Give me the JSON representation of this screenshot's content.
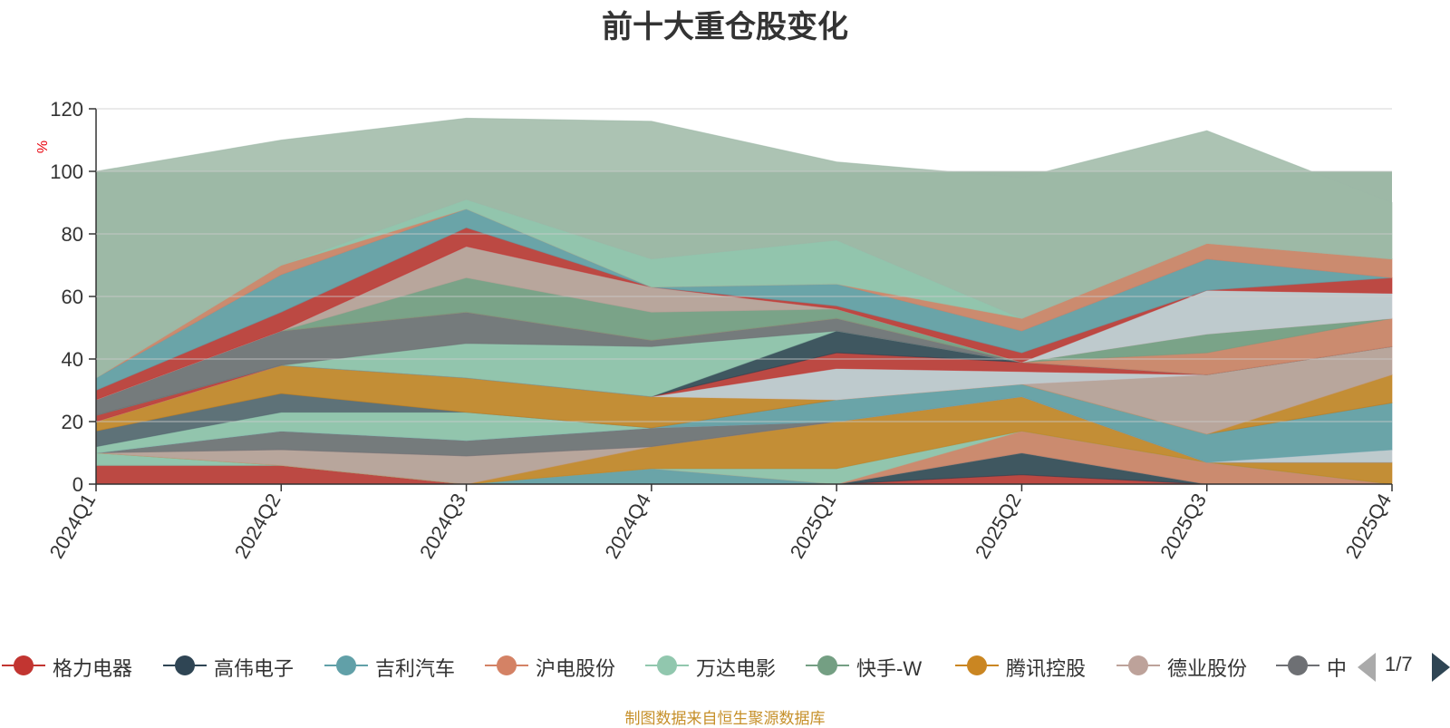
{
  "chart_data": {
    "type": "area",
    "title": "前十大重仓股变化",
    "ylabel": "%",
    "ylim": [
      0,
      120
    ],
    "yticks": [
      0,
      20,
      40,
      60,
      80,
      100,
      120
    ],
    "categories": [
      "2024Q1",
      "2024Q2",
      "2024Q3",
      "2024Q4",
      "2025Q1",
      "2025Q2",
      "2025Q3",
      "2025Q4"
    ],
    "grid": true,
    "background_band": {
      "from": 0,
      "to": 100,
      "color": "#9db8a6"
    },
    "series": [
      {
        "name": "格力电器",
        "color": "#c23531",
        "values": [
          6,
          6,
          0,
          0,
          0,
          3,
          0,
          0
        ]
      },
      {
        "name": "高伟电子",
        "color": "#2f4554",
        "values": [
          0,
          0,
          0,
          0,
          0,
          7,
          0,
          0
        ]
      },
      {
        "name": "吉利汽车",
        "color": "#61a0a8",
        "values": [
          0,
          0,
          0,
          5,
          0,
          0,
          0,
          0
        ]
      },
      {
        "name": "沪电股份",
        "color": "#d48265",
        "values": [
          0,
          0,
          0,
          0,
          0,
          7,
          7,
          0
        ]
      },
      {
        "name": "万达电影",
        "color": "#91c7ae",
        "values": [
          4,
          0,
          0,
          0,
          5,
          0,
          0,
          0
        ]
      },
      {
        "name": "快手-W",
        "color": "#749f83",
        "values": [
          0,
          0,
          0,
          0,
          0,
          0,
          0,
          0
        ]
      },
      {
        "name": "腾讯控股",
        "color": "#ca8622",
        "values": [
          0,
          0,
          0,
          7,
          15,
          11,
          0,
          7
        ]
      },
      {
        "name": "德业股份",
        "color": "#bda29a",
        "values": [
          0,
          5,
          9,
          0,
          0,
          0,
          0,
          0
        ]
      },
      {
        "name": "中",
        "color": "#6e7074",
        "values": [
          0,
          6,
          5,
          6,
          0,
          0,
          0,
          0
        ]
      },
      {
        "name": "",
        "color": "#546570",
        "values": [
          0,
          0,
          0,
          0,
          0,
          0,
          0,
          0
        ]
      },
      {
        "name": "",
        "color": "#c4ccd3",
        "values": [
          0,
          0,
          0,
          0,
          0,
          0,
          0,
          4
        ]
      },
      {
        "name": "",
        "color": "#61a0a8",
        "values": [
          0,
          0,
          0,
          0,
          7,
          4,
          9,
          15
        ]
      },
      {
        "name": "",
        "color": "#91c7ae",
        "values": [
          2,
          6,
          9,
          0,
          0,
          0,
          0,
          0
        ]
      },
      {
        "name": "",
        "color": "#546570",
        "values": [
          5,
          6,
          0,
          0,
          0,
          0,
          0,
          0
        ]
      },
      {
        "name": "",
        "color": "#ca8622",
        "values": [
          3,
          9,
          11,
          10,
          0,
          0,
          0,
          9
        ]
      },
      {
        "name": "",
        "color": "#bda29a",
        "values": [
          0,
          0,
          0,
          0,
          0,
          0,
          19,
          9
        ]
      },
      {
        "name": "",
        "color": "#c4ccd3",
        "values": [
          0,
          0,
          0,
          0,
          10,
          4,
          0,
          0
        ]
      },
      {
        "name": "",
        "color": "#c23531",
        "values": [
          2,
          0,
          0,
          0,
          5,
          3,
          0,
          0
        ]
      },
      {
        "name": "",
        "color": "#2f4554",
        "values": [
          0,
          0,
          0,
          0,
          7,
          0,
          0,
          0
        ]
      },
      {
        "name": "",
        "color": "#91c7ae",
        "values": [
          0,
          0,
          11,
          16,
          0,
          0,
          0,
          0
        ]
      },
      {
        "name": "",
        "color": "#6e7074",
        "values": [
          5,
          11,
          10,
          2,
          4,
          0,
          0,
          0
        ]
      },
      {
        "name": "",
        "color": "#d48265",
        "values": [
          0,
          0,
          0,
          0,
          0,
          0,
          7,
          9
        ]
      },
      {
        "name": "",
        "color": "#749f83",
        "values": [
          0,
          0,
          11,
          9,
          3,
          0,
          6,
          0
        ]
      },
      {
        "name": "",
        "color": "#bda29a",
        "values": [
          0,
          0,
          10,
          8,
          0,
          0,
          0,
          0
        ]
      },
      {
        "name": "",
        "color": "#c4ccd3",
        "values": [
          0,
          0,
          0,
          0,
          0,
          0,
          14,
          8
        ]
      },
      {
        "name": "",
        "color": "#c23531",
        "values": [
          3,
          6,
          6,
          0,
          1,
          3,
          0,
          5
        ]
      },
      {
        "name": "",
        "color": "#61a0a8",
        "values": [
          4,
          12,
          6,
          0,
          7,
          7,
          10,
          0
        ]
      },
      {
        "name": "",
        "color": "#d48265",
        "values": [
          0,
          3,
          0,
          0,
          0,
          4,
          5,
          6
        ]
      },
      {
        "name": "",
        "color": "#91c7ae",
        "values": [
          0,
          0,
          3,
          9,
          14,
          0,
          0,
          0
        ]
      },
      {
        "name": "",
        "color": "#9db8a6",
        "values": [
          66,
          40,
          26,
          44,
          25,
          45,
          36,
          18
        ]
      }
    ]
  },
  "legend": {
    "items": [
      "格力电器",
      "高伟电子",
      "吉利汽车",
      "沪电股份",
      "万达电影",
      "快手-W",
      "腾讯控股",
      "德业股份",
      "中"
    ],
    "page_text": "1/7"
  },
  "footer": "制图数据来自恒生聚源数据库",
  "colors": {
    "axis": "#333333",
    "grid": "#cccccc",
    "ylabel": "#e8000b",
    "footer": "#c6902a"
  }
}
